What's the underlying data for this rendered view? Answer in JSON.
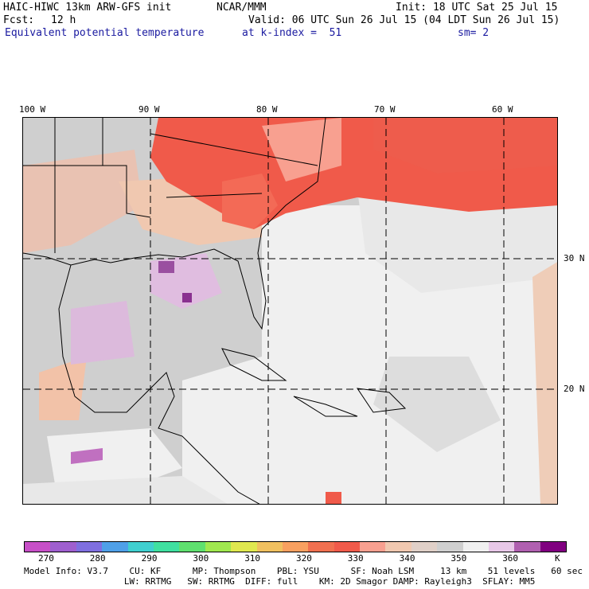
{
  "header": {
    "model": "HAIC-HIWC 13km ARW-GFS init",
    "org": "NCAR/MMM",
    "init": "Init: 18 UTC Sat 25 Jul 15",
    "fcst_label": "Fcst:",
    "fcst_value": "12 h",
    "valid": "Valid: 06 UTC Sun 26 Jul 15 (04 LDT Sun 26 Jul 15)",
    "field": "Equivalent potential temperature",
    "level": "at k-index =  51",
    "smooth": "sm= 2"
  },
  "map": {
    "lon_labels": [
      "100 W",
      "90 W",
      "80 W",
      "70 W",
      "60 W"
    ],
    "lat_labels": [
      "30 N",
      "20 N"
    ]
  },
  "colorbar": {
    "colors": [
      "#c74fc7",
      "#9f5fcf",
      "#7f6fe0",
      "#4fa0e8",
      "#3fcfcf",
      "#3fe0a0",
      "#5fe06f",
      "#a0e84f",
      "#e0e84f",
      "#f0c060",
      "#f8a060",
      "#f07050",
      "#f05a4a",
      "#f8a090",
      "#f0c8b0",
      "#e0d0c8",
      "#cfcfcf",
      "#f0f0f0",
      "#e8c8e8",
      "#b060b0",
      "#800080"
    ],
    "ticks": [
      "270",
      "280",
      "290",
      "300",
      "310",
      "320",
      "330",
      "340",
      "350",
      "360"
    ],
    "unit": "K"
  },
  "footer": {
    "line1": "Model Info: V3.7    CU: KF      MP: Thompson    PBL: YSU      SF: Noah LSM     13 km    51 levels   60 sec",
    "line2": "                   LW: RRTMG   SW: RRTMG  DIFF: full    KM: 2D Smagor DAMP: Rayleigh3  SFLAY: MM5"
  }
}
